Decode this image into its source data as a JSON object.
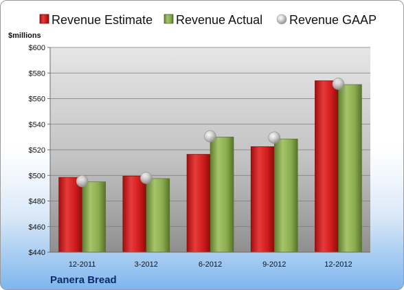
{
  "chart_data": {
    "type": "bar",
    "title": "",
    "company": "Panera Bread",
    "units_label": "$millions",
    "categories": [
      "12-2011",
      "3-2012",
      "6-2012",
      "9-2012",
      "12-2012"
    ],
    "series": [
      {
        "name": "Revenue Estimate",
        "kind": "bar",
        "color": "#d42020",
        "values": [
          498.5,
          499.5,
          516.5,
          522.5,
          574
        ]
      },
      {
        "name": "Revenue Actual",
        "kind": "bar",
        "color": "#8bae52",
        "values": [
          495,
          497.5,
          530,
          528.5,
          571
        ]
      },
      {
        "name": "Revenue GAAP",
        "kind": "marker",
        "color": "#c8c8c8",
        "values": [
          495.5,
          498,
          530.5,
          529.5,
          571.5
        ]
      }
    ],
    "ylim": [
      440,
      600
    ],
    "yticks": [
      440,
      460,
      480,
      500,
      520,
      540,
      560,
      580,
      600
    ],
    "ytick_labels": [
      "$440",
      "$460",
      "$480",
      "$500",
      "$520",
      "$540",
      "$560",
      "$580",
      "$600"
    ],
    "grid": true,
    "legend_position": "top"
  }
}
